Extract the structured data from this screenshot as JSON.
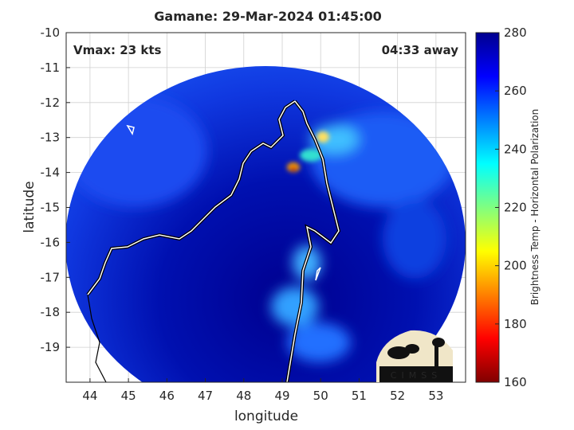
{
  "title": "Gamane: 29-Mar-2024 01:45:00",
  "annotations": {
    "vmax": "Vmax: 23 kts",
    "time_away": "04:33 away"
  },
  "axes": {
    "xlabel": "longitude",
    "ylabel": "latitude",
    "xlim": [
      43.38,
      53.77
    ],
    "xticks": [
      44,
      45,
      46,
      47,
      48,
      49,
      50,
      51,
      52,
      53
    ],
    "ylim": [
      -20,
      -10
    ],
    "yticks": [
      -10,
      -11,
      -12,
      -13,
      -14,
      -15,
      -16,
      -17,
      -18,
      -19
    ],
    "grid": true
  },
  "colorbar": {
    "label": "Brightness Temp - Horizontal Polarization",
    "lim": [
      160,
      280
    ],
    "ticks": [
      160,
      180,
      200,
      220,
      240,
      260,
      280
    ],
    "colormap": [
      "#800000",
      "#ff0000",
      "#ff8000",
      "#ffff00",
      "#80ff80",
      "#00ffff",
      "#0080ff",
      "#0000ff",
      "#00008f"
    ]
  },
  "logo": "CIMSS"
}
